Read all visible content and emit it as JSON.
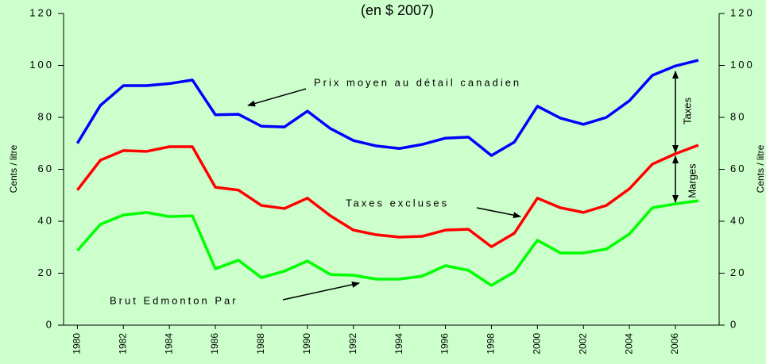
{
  "chart_data": {
    "type": "line",
    "title": "(en $ 2007)",
    "ylabel": "Cents / litre",
    "x": [
      1980,
      1981,
      1982,
      1983,
      1984,
      1985,
      1986,
      1987,
      1988,
      1989,
      1990,
      1991,
      1992,
      1993,
      1994,
      1995,
      1996,
      1997,
      1998,
      1999,
      2000,
      2001,
      2002,
      2003,
      2004,
      2005,
      2006,
      2007
    ],
    "series": [
      {
        "name": "Prix moyen au détail canadien",
        "color": "#0000ff",
        "values": [
          70,
          84.6,
          92.2,
          92.2,
          93,
          94.4,
          81,
          81.2,
          76.6,
          76.3,
          82.4,
          75.7,
          71.1,
          69,
          68,
          69.6,
          72,
          72.4,
          65.3,
          70.5,
          84.3,
          79.7,
          77.3,
          80,
          86.4,
          96.2,
          99.8,
          102
        ]
      },
      {
        "name": "Taxes excluses",
        "color": "#ff0000",
        "values": [
          52,
          63.5,
          67.2,
          66.9,
          68.7,
          68.7,
          53.1,
          52,
          46.1,
          44.9,
          48.9,
          42.1,
          36.6,
          34.8,
          33.9,
          34.2,
          36.6,
          36.9,
          30.2,
          35.4,
          48.9,
          45.2,
          43.4,
          46.1,
          52.5,
          62,
          66,
          69.3
        ]
      },
      {
        "name": "Brut Edmonton Par",
        "color": "#00ff00",
        "values": [
          28.7,
          38.8,
          42.4,
          43.4,
          41.8,
          42.1,
          21.7,
          25,
          18.3,
          20.8,
          24.7,
          19.5,
          19.2,
          17.7,
          17.7,
          18.9,
          22.9,
          21.1,
          15.3,
          20.5,
          32.7,
          27.8,
          27.8,
          29.3,
          35.1,
          45.2,
          46.7,
          47.9
        ]
      }
    ],
    "annotations": [
      "Taxes",
      "Marges"
    ],
    "xlim": [
      1979.4,
      2007.9
    ],
    "xticks": [
      1980,
      1982,
      1984,
      1986,
      1988,
      1990,
      1992,
      1994,
      1996,
      1998,
      2000,
      2002,
      2004,
      2006
    ],
    "ylim": [
      0,
      120
    ],
    "yticks": [
      0,
      20,
      40,
      60,
      80,
      100,
      120
    ],
    "grid": false
  }
}
